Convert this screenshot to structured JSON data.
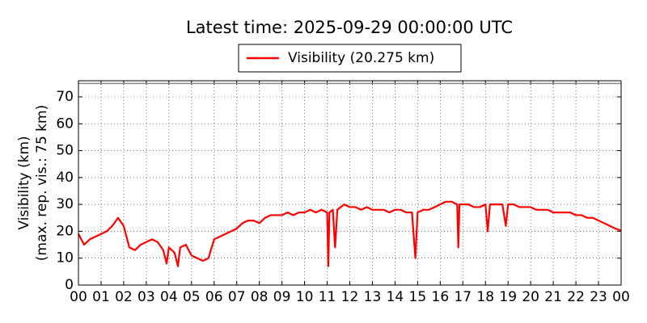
{
  "chart_data": {
    "type": "line",
    "title": "Latest time: 2025-09-29 00:00:00 UTC",
    "ylabel": [
      "Visibility (km)",
      "(max. rep. vis.: 75 km)"
    ],
    "xlim": [
      0,
      24
    ],
    "ylim": [
      0,
      76
    ],
    "xticks": [
      {
        "value": 0,
        "label": "00"
      },
      {
        "value": 1,
        "label": "01"
      },
      {
        "value": 2,
        "label": "02"
      },
      {
        "value": 3,
        "label": "03"
      },
      {
        "value": 4,
        "label": "04"
      },
      {
        "value": 5,
        "label": "05"
      },
      {
        "value": 6,
        "label": "06"
      },
      {
        "value": 7,
        "label": "07"
      },
      {
        "value": 8,
        "label": "08"
      },
      {
        "value": 9,
        "label": "09"
      },
      {
        "value": 10,
        "label": "10"
      },
      {
        "value": 11,
        "label": "11"
      },
      {
        "value": 12,
        "label": "12"
      },
      {
        "value": 13,
        "label": "13"
      },
      {
        "value": 14,
        "label": "14"
      },
      {
        "value": 15,
        "label": "15"
      },
      {
        "value": 16,
        "label": "16"
      },
      {
        "value": 17,
        "label": "17"
      },
      {
        "value": 18,
        "label": "18"
      },
      {
        "value": 19,
        "label": "19"
      },
      {
        "value": 20,
        "label": "20"
      },
      {
        "value": 21,
        "label": "21"
      },
      {
        "value": 22,
        "label": "22"
      },
      {
        "value": 23,
        "label": "23"
      },
      {
        "value": 24,
        "label": "00"
      }
    ],
    "yticks": [
      0,
      10,
      20,
      30,
      40,
      50,
      60,
      70
    ],
    "grid": true,
    "reference_line": 75,
    "legend": "top",
    "x": [
      0,
      0.25,
      0.5,
      0.75,
      1,
      1.25,
      1.5,
      1.75,
      2,
      2.25,
      2.5,
      2.75,
      3,
      3.25,
      3.5,
      3.75,
      3.9,
      4,
      4.25,
      4.4,
      4.5,
      4.75,
      5,
      5.25,
      5.5,
      5.75,
      6,
      6.25,
      6.5,
      6.75,
      7,
      7.25,
      7.5,
      7.75,
      8,
      8.25,
      8.5,
      8.75,
      9,
      9.25,
      9.5,
      9.75,
      10,
      10.25,
      10.5,
      10.75,
      11,
      11.05,
      11.1,
      11.25,
      11.35,
      11.45,
      11.75,
      12,
      12.25,
      12.5,
      12.75,
      13,
      13.25,
      13.5,
      13.75,
      14,
      14.25,
      14.5,
      14.75,
      14.9,
      15,
      15.25,
      15.5,
      15.75,
      16,
      16.25,
      16.5,
      16.75,
      16.8,
      16.85,
      17,
      17.25,
      17.5,
      17.75,
      18,
      18.1,
      18.2,
      18.5,
      18.75,
      18.9,
      19,
      19.25,
      19.5,
      19.75,
      20,
      20.25,
      20.5,
      20.75,
      21,
      21.25,
      21.5,
      21.75,
      22,
      22.25,
      22.5,
      22.75,
      23,
      23.25,
      23.5,
      23.75,
      24
    ],
    "series": [
      {
        "name": "Visibility (20.275 km)",
        "color": "#ff0000",
        "values": [
          19,
          15,
          17,
          18,
          19,
          20,
          22,
          25,
          22,
          14,
          13,
          15,
          16,
          17,
          16,
          13,
          8,
          14,
          12,
          7,
          14,
          15,
          11,
          10,
          9,
          10,
          17,
          18,
          19,
          20,
          21,
          23,
          24,
          24,
          23,
          25,
          26,
          26,
          26,
          27,
          26,
          27,
          27,
          28,
          27,
          28,
          27,
          7,
          27,
          28,
          14,
          28,
          30,
          29,
          29,
          28,
          29,
          28,
          28,
          28,
          27,
          28,
          28,
          27,
          27,
          10,
          27,
          28,
          28,
          29,
          30,
          31,
          31,
          30,
          14,
          30,
          30,
          30,
          29,
          29,
          30,
          20,
          30,
          30,
          30,
          22,
          30,
          30,
          29,
          29,
          29,
          28,
          28,
          28,
          27,
          27,
          27,
          27,
          26,
          26,
          25,
          25,
          24,
          23,
          22,
          21,
          20.275
        ]
      }
    ]
  }
}
